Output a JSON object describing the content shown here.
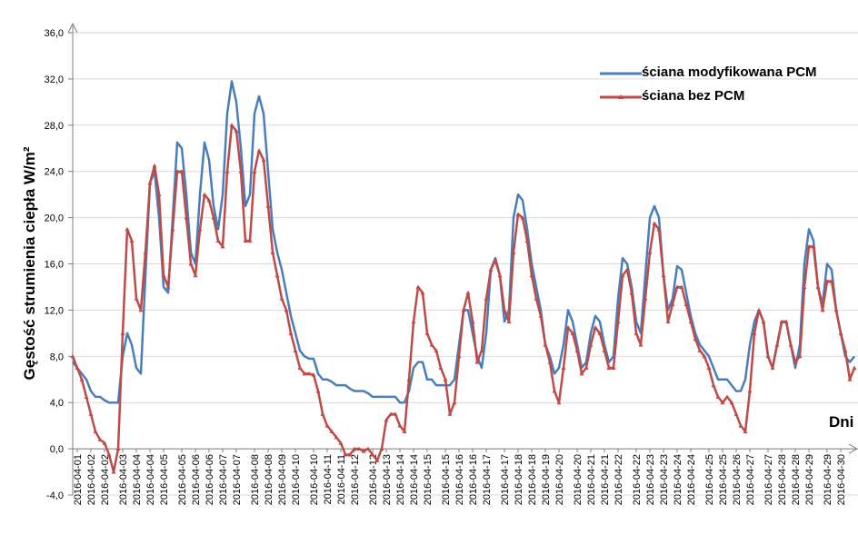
{
  "chart_data": {
    "type": "line",
    "y_label": "Gęstość strumienia ciepła W/m²",
    "x_label": "Dni",
    "categories": [
      null,
      "2016-04-01",
      null,
      null,
      "2016-04-02",
      null,
      null,
      "2016-04-02",
      null,
      null,
      null,
      "2016-04-03",
      null,
      null,
      "2016-04-04",
      null,
      null,
      "2016-04-04",
      null,
      null,
      "2016-04-05",
      null,
      null,
      null,
      "2016-04-05",
      null,
      null,
      "2016-04-06",
      null,
      null,
      "2016-04-06",
      null,
      null,
      "2016-04-07",
      null,
      null,
      "2016-04-07",
      null,
      null,
      null,
      "2016-04-08",
      null,
      null,
      "2016-04-08",
      null,
      null,
      "2016-04-09",
      null,
      null,
      "2016-04-10",
      null,
      null,
      null,
      "2016-04-10",
      null,
      null,
      "2016-04-11",
      null,
      null,
      "2016-04-11",
      null,
      null,
      "2016-04-12",
      null,
      null,
      null,
      "2016-04-12",
      null,
      null,
      "2016-04-13",
      null,
      null,
      "2016-04-14",
      null,
      null,
      "2016-04-14",
      null,
      null,
      "2016-04-15",
      null,
      null,
      null,
      "2016-04-15",
      null,
      null,
      "2016-04-16",
      null,
      null,
      "2016-04-16",
      null,
      null,
      "2016-04-17",
      null,
      null,
      null,
      "2016-04-17",
      null,
      null,
      "2016-04-18",
      null,
      null,
      "2016-04-18",
      null,
      null,
      "2016-04-19",
      null,
      null,
      "2016-04-20",
      null,
      null,
      null,
      "2016-04-20",
      null,
      null,
      "2016-04-21",
      null,
      null,
      "2016-04-21",
      null,
      null,
      "2016-04-22",
      null,
      null,
      null,
      "2016-04-22",
      null,
      null,
      "2016-04-23",
      null,
      null,
      "2016-04-23",
      null,
      null,
      "2016-04-24",
      null,
      null,
      "2016-04-24",
      null,
      null,
      null,
      "2016-04-25",
      null,
      null,
      "2016-04-25",
      null,
      null,
      "2016-04-26",
      null,
      null,
      "2016-04-27",
      null,
      null,
      null,
      "2016-04-27",
      null,
      null,
      "2016-04-28",
      null,
      null,
      "2016-04-28",
      null,
      null,
      "2016-04-29",
      null,
      null,
      null,
      "2016-04-29",
      null,
      null,
      "2016-04-30",
      null,
      null,
      null
    ],
    "series": [
      {
        "name": "ściana modyfikowana PCM",
        "color": "#4a7ebb",
        "values": [
          7.5,
          7,
          6.5,
          6,
          5,
          4.5,
          4.5,
          4.2,
          4,
          4,
          4,
          8,
          10,
          9,
          7,
          6.5,
          15,
          23,
          24,
          20,
          14,
          13.5,
          20,
          26.5,
          26,
          22,
          17,
          16,
          22,
          26.5,
          25,
          21,
          19,
          22,
          29,
          31.8,
          30,
          26,
          21,
          22,
          29,
          30.5,
          29,
          24,
          19,
          17,
          15.5,
          13.5,
          11.5,
          10,
          8.5,
          8,
          7.8,
          7.8,
          6.5,
          6,
          6,
          5.8,
          5.5,
          5.5,
          5.5,
          5.2,
          5,
          5,
          5,
          4.8,
          4.5,
          4.5,
          4.5,
          4.5,
          4.5,
          4.5,
          4,
          4,
          5,
          7,
          7.5,
          7.5,
          6,
          6,
          5.5,
          5.5,
          5.5,
          5.5,
          6,
          9,
          12,
          12,
          10,
          8,
          7,
          10,
          15.5,
          16.5,
          15,
          11,
          12,
          20,
          22,
          21.5,
          19,
          16,
          14,
          12,
          9,
          8,
          6.5,
          7,
          9,
          12,
          11,
          9,
          7,
          7.5,
          10,
          11.5,
          11,
          9,
          7.5,
          8,
          13,
          16.5,
          16,
          14,
          11,
          10,
          15,
          20,
          21,
          20,
          15,
          12,
          13,
          15.8,
          15.5,
          13.5,
          11.5,
          10,
          9,
          8.5,
          8,
          7,
          6,
          6,
          6,
          5.5,
          5,
          5,
          6,
          9,
          11,
          12,
          11,
          8,
          7,
          9,
          11,
          11,
          9,
          7,
          9,
          16,
          19,
          18,
          14,
          12.5,
          16,
          15.5,
          12,
          10,
          8,
          7.5,
          8
        ]
      },
      {
        "name": "ściana bez PCM",
        "color": "#be4b48",
        "marker": "triangle",
        "values": [
          8,
          7,
          6,
          4.5,
          3,
          1.5,
          0.8,
          0.5,
          -0.5,
          -2,
          0,
          10,
          19,
          18,
          13,
          12,
          17,
          23,
          24.5,
          22,
          15,
          14,
          19,
          24,
          24,
          20,
          16,
          15,
          19,
          22,
          21.5,
          20,
          18,
          17.5,
          24,
          28,
          27.5,
          24,
          18,
          18,
          24,
          25.8,
          25,
          21,
          17,
          15,
          13,
          12,
          10,
          8.5,
          7,
          6.5,
          6.5,
          6.4,
          5,
          3,
          2,
          1.5,
          1,
          0.5,
          -0.5,
          -0.5,
          0,
          0,
          -0.2,
          0,
          -0.5,
          -1,
          0,
          2.5,
          3,
          3,
          2,
          1.5,
          6,
          11,
          14,
          13.5,
          10,
          9,
          8.5,
          7,
          6,
          3,
          4,
          8,
          12,
          13.5,
          11,
          7.5,
          8.5,
          13,
          15.5,
          16.3,
          15,
          12,
          11,
          17,
          20.3,
          20,
          18,
          15,
          13,
          11.5,
          9,
          7.5,
          5,
          4,
          7,
          10.5,
          10,
          8.5,
          6.5,
          7,
          9,
          10.5,
          10,
          8.5,
          7,
          7,
          11,
          15,
          15.5,
          13.5,
          10,
          9,
          13,
          17,
          19.5,
          19,
          15,
          11,
          12.5,
          14,
          14,
          12.5,
          11,
          9.5,
          8.5,
          8,
          7,
          5.5,
          4.5,
          4,
          4.5,
          4,
          3,
          2,
          1.5,
          5,
          10,
          12,
          11,
          8,
          7,
          9,
          11,
          11,
          9,
          7.5,
          8,
          14,
          17.5,
          17.5,
          14,
          12,
          14.5,
          14.5,
          12,
          10,
          8.5,
          6,
          7
        ]
      }
    ],
    "ylim": [
      -4,
      36
    ],
    "yticks": [
      {
        "value": -4,
        "label": "-4,0"
      },
      {
        "value": 0,
        "label": "0,0"
      },
      {
        "value": 4,
        "label": "4,0"
      },
      {
        "value": 8,
        "label": "8,0"
      },
      {
        "value": 12,
        "label": "12,0"
      },
      {
        "value": 16,
        "label": "16,0"
      },
      {
        "value": 20,
        "label": "20,0"
      },
      {
        "value": 24,
        "label": "24,0"
      },
      {
        "value": 28,
        "label": "28,0"
      },
      {
        "value": 32,
        "label": "32,0"
      },
      {
        "value": 36,
        "label": "36,0"
      }
    ],
    "grid": true,
    "legend": "top-right"
  }
}
